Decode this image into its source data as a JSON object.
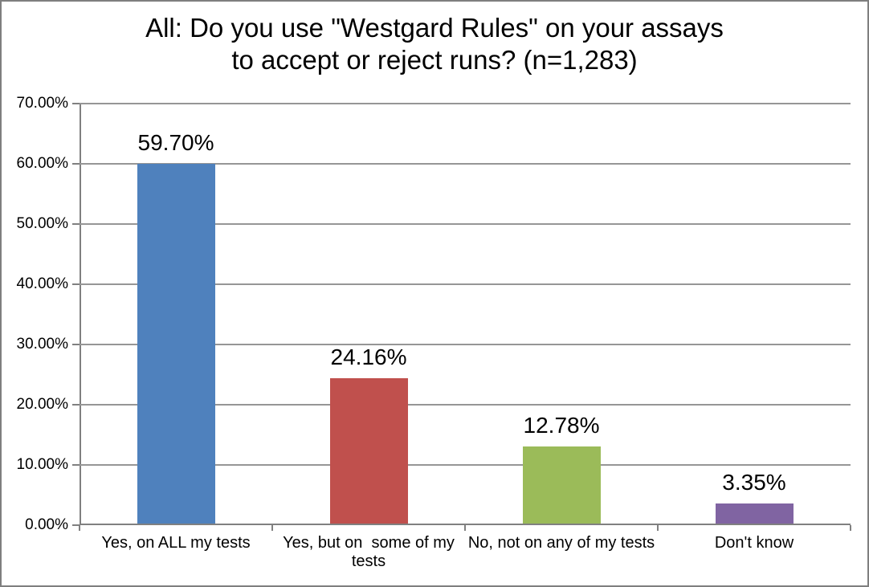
{
  "chart_data": {
    "type": "bar",
    "title": "All: Do you use \"Westgard Rules\" on your assays to accept or reject runs? (n=1,283)",
    "title_lines": [
      "All: Do you use \"Westgard Rules\" on your assays",
      "to accept or reject runs? (n=1,283)"
    ],
    "n_respondents": "n=1,283",
    "categories": [
      "Yes, on ALL my tests",
      "Yes, but on  some of my tests",
      "No, not on any of my tests",
      "Don't know"
    ],
    "values": [
      59.7,
      24.16,
      12.78,
      3.35
    ],
    "value_labels": [
      "59.70%",
      "24.16%",
      "12.78%",
      "3.35%"
    ],
    "bar_colors": [
      "#4F81BD",
      "#C0504D",
      "#9BBB59",
      "#8064A2"
    ],
    "xlabel": "",
    "ylabel": "",
    "ylim": [
      0,
      70
    ],
    "yticks": [
      0,
      10,
      20,
      30,
      40,
      50,
      60,
      70
    ],
    "ytick_labels": [
      "0.00%",
      "10.00%",
      "20.00%",
      "30.00%",
      "40.00%",
      "50.00%",
      "60.00%",
      "70.00%"
    ],
    "grid": true,
    "legend": "none",
    "colors": {
      "gridline": "#969696",
      "axis": "#808080",
      "figure_border": "#7F7F7F",
      "text": "#000000",
      "background": "#FFFFFF"
    }
  }
}
